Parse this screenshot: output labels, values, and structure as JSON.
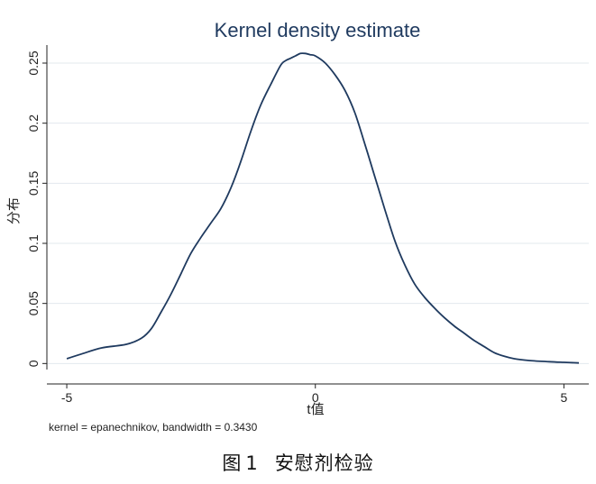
{
  "chart_data": {
    "type": "line",
    "title": "Kernel density estimate",
    "xlabel": "t值",
    "ylabel": "分布",
    "note": "kernel = epanechnikov, bandwidth = 0.3430",
    "xlim": [
      -5.4,
      5.5
    ],
    "ylim": [
      -0.005,
      0.265
    ],
    "x_ticks": [
      -5,
      0,
      5
    ],
    "y_ticks": [
      0,
      0.05,
      0.1,
      0.15,
      0.2,
      0.25
    ],
    "y_tick_labels": [
      "0",
      "0.05",
      "0.1",
      "0.15",
      "0.2",
      "0.25"
    ],
    "grid": true,
    "colors": {
      "line": "#1f3a5f",
      "grid": "#e3e8ee",
      "title": "#1f3a5f",
      "axis": "#222222"
    },
    "series": [
      {
        "x": [
          -5.0,
          -4.7,
          -4.3,
          -3.8,
          -3.5,
          -3.3,
          -3.1,
          -2.9,
          -2.7,
          -2.5,
          -2.3,
          -2.1,
          -1.9,
          -1.7,
          -1.5,
          -1.3,
          -1.1,
          -0.9,
          -0.7,
          -0.6,
          -0.5,
          -0.4,
          -0.3,
          -0.2,
          -0.1,
          0.0,
          0.2,
          0.4,
          0.6,
          0.8,
          1.0,
          1.2,
          1.4,
          1.6,
          1.8,
          2.0,
          2.2,
          2.4,
          2.6,
          2.8,
          3.0,
          3.2,
          3.4,
          3.6,
          3.8,
          4.0,
          4.3,
          4.7,
          5.0,
          5.3
        ],
        "y": [
          0.004,
          0.008,
          0.013,
          0.016,
          0.021,
          0.029,
          0.043,
          0.058,
          0.075,
          0.092,
          0.105,
          0.117,
          0.129,
          0.146,
          0.168,
          0.193,
          0.215,
          0.232,
          0.248,
          0.252,
          0.254,
          0.256,
          0.258,
          0.258,
          0.257,
          0.256,
          0.25,
          0.24,
          0.227,
          0.208,
          0.182,
          0.155,
          0.128,
          0.102,
          0.082,
          0.066,
          0.055,
          0.046,
          0.038,
          0.031,
          0.025,
          0.019,
          0.014,
          0.009,
          0.006,
          0.004,
          0.0025,
          0.0015,
          0.001,
          0.0005
        ]
      }
    ]
  },
  "caption": {
    "label": "图",
    "number": "1",
    "text": "安慰剂检验"
  }
}
